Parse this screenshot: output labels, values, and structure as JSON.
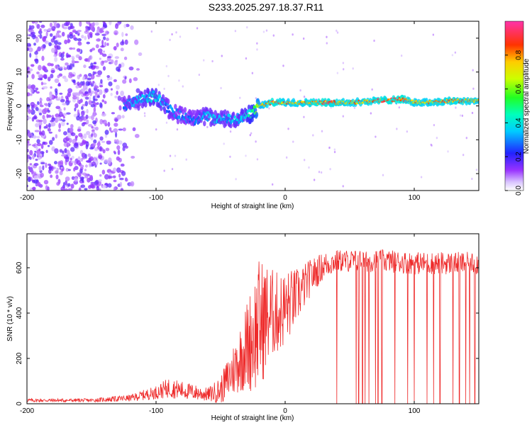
{
  "title": "S233.2025.297.18.37.R11",
  "top_panel": {
    "xlabel": "Height of straight line (km)",
    "ylabel": "Frequency (Hz)",
    "colorbar_label": "Normalized spectral amplitude"
  },
  "bottom_panel": {
    "xlabel": "Height of straight line (km)",
    "ylabel": "SNR (10 * v/v)"
  },
  "colors": {
    "snr_line": "#ee2a2a",
    "frame": "#000000"
  },
  "chart_data": [
    {
      "type": "heatmap",
      "title": "S233.2025.297.18.37.R11",
      "xlabel": "Height of straight line (km)",
      "ylabel": "Frequency (Hz)",
      "xlim": [
        -200,
        150
      ],
      "ylim": [
        -25,
        25
      ],
      "xticks": [
        -200,
        -100,
        0,
        100
      ],
      "yticks": [
        -20,
        -10,
        0,
        10,
        20
      ],
      "colorbar": {
        "label": "Normalized spectral amplitude",
        "range": [
          0,
          1
        ],
        "ticks": [
          0.0,
          0.2,
          0.4,
          0.6,
          0.8
        ]
      },
      "ridge": {
        "x": [
          -125,
          -110,
          -100,
          -90,
          -80,
          -70,
          -60,
          -50,
          -40,
          -30,
          -25,
          -20,
          -10,
          0,
          10,
          30,
          50,
          70,
          90,
          100,
          110,
          130,
          150
        ],
        "frequency": [
          0,
          2,
          3,
          -1,
          -3,
          -4,
          -3,
          -4,
          -4,
          -3,
          -2,
          0,
          1,
          1,
          1,
          1,
          1,
          1.5,
          2,
          1,
          1,
          1.5,
          1.5
        ],
        "amplitude": [
          0.3,
          0.35,
          0.4,
          0.3,
          0.3,
          0.3,
          0.35,
          0.35,
          0.35,
          0.4,
          0.5,
          0.7,
          0.9,
          0.8,
          0.8,
          0.9,
          0.8,
          0.85,
          0.9,
          0.8,
          0.8,
          0.85,
          0.8
        ]
      },
      "noise_region": {
        "x_range": [
          -200,
          -110
        ],
        "frequency_range": [
          -25,
          25
        ],
        "amplitude": 0.15
      }
    },
    {
      "type": "line",
      "xlabel": "Height of straight line (km)",
      "ylabel": "SNR (10 * v/v)",
      "xlim": [
        -200,
        150
      ],
      "ylim": [
        0,
        750
      ],
      "xticks": [
        -200,
        -100,
        0,
        100
      ],
      "yticks": [
        0,
        200,
        400,
        600
      ],
      "series": [
        {
          "name": "SNR",
          "x": [
            -200,
            -150,
            -120,
            -100,
            -90,
            -80,
            -70,
            -60,
            -50,
            -40,
            -35,
            -30,
            -25,
            -20,
            -15,
            -10,
            -5,
            0,
            10,
            20,
            30,
            40,
            60,
            80,
            100,
            120,
            150
          ],
          "mid": [
            15,
            15,
            25,
            50,
            70,
            60,
            50,
            40,
            60,
            150,
            200,
            250,
            300,
            350,
            380,
            400,
            400,
            420,
            480,
            560,
            610,
            630,
            630,
            630,
            620,
            620,
            620
          ],
          "amp": [
            8,
            8,
            15,
            30,
            45,
            40,
            35,
            30,
            60,
            120,
            150,
            200,
            250,
            300,
            250,
            200,
            180,
            170,
            120,
            80,
            60,
            50,
            50,
            50,
            50,
            50,
            50
          ]
        }
      ],
      "dropouts_to_zero_x": [
        40,
        55,
        57,
        60,
        62,
        65,
        70,
        72,
        75,
        85,
        95,
        100,
        110,
        115,
        120,
        130,
        135,
        140,
        143,
        147
      ]
    }
  ]
}
